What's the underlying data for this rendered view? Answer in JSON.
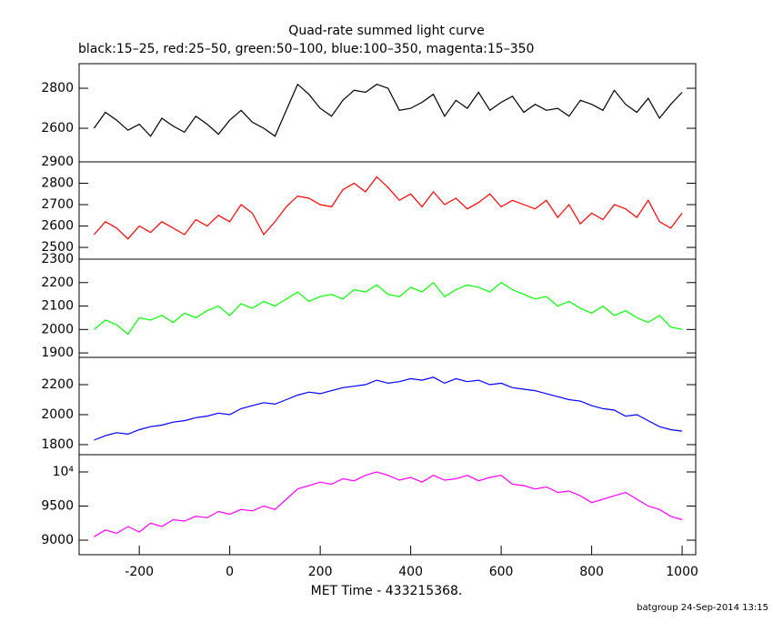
{
  "chart_data": [
    {
      "type": "line",
      "title": "Quad-rate summed light curve",
      "subtitle": "black:15–25, red:25–50, green:50–100, blue:100–350, magenta:15–350",
      "x": [
        -300,
        -275,
        -250,
        -225,
        -200,
        -175,
        -150,
        -125,
        -100,
        -75,
        -50,
        -25,
        0,
        25,
        50,
        75,
        100,
        125,
        150,
        175,
        200,
        225,
        250,
        275,
        300,
        325,
        350,
        375,
        400,
        425,
        450,
        475,
        500,
        525,
        550,
        575,
        600,
        625,
        650,
        675,
        700,
        725,
        750,
        775,
        800,
        825,
        850,
        875,
        900,
        925,
        950,
        975,
        1000
      ],
      "series": [
        {
          "color": "#000000",
          "values": [
            2600,
            2680,
            2640,
            2590,
            2620,
            2560,
            2650,
            2610,
            2580,
            2660,
            2620,
            2570,
            2640,
            2690,
            2630,
            2600,
            2560,
            2690,
            2820,
            2770,
            2700,
            2660,
            2740,
            2790,
            2780,
            2820,
            2800,
            2690,
            2700,
            2730,
            2770,
            2660,
            2740,
            2700,
            2780,
            2690,
            2730,
            2760,
            2680,
            2720,
            2690,
            2700,
            2660,
            2740,
            2720,
            2690,
            2790,
            2720,
            2680,
            2750,
            2650,
            2720,
            2780
          ]
        }
      ],
      "xlim": [
        -333,
        1030
      ],
      "ylim": [
        2432,
        2923
      ],
      "yticks": [
        2600,
        2800
      ]
    },
    {
      "type": "line",
      "x": [
        -300,
        -275,
        -250,
        -225,
        -200,
        -175,
        -150,
        -125,
        -100,
        -75,
        -50,
        -25,
        0,
        25,
        50,
        75,
        100,
        125,
        150,
        175,
        200,
        225,
        250,
        275,
        300,
        325,
        350,
        375,
        400,
        425,
        450,
        475,
        500,
        525,
        550,
        575,
        600,
        625,
        650,
        675,
        700,
        725,
        750,
        775,
        800,
        825,
        850,
        875,
        900,
        925,
        950,
        975,
        1000
      ],
      "series": [
        {
          "color": "#ff0000",
          "values": [
            2560,
            2620,
            2590,
            2540,
            2600,
            2570,
            2620,
            2590,
            2560,
            2630,
            2600,
            2650,
            2620,
            2700,
            2660,
            2560,
            2620,
            2690,
            2740,
            2730,
            2700,
            2690,
            2770,
            2800,
            2760,
            2830,
            2780,
            2720,
            2750,
            2690,
            2760,
            2700,
            2730,
            2680,
            2710,
            2750,
            2690,
            2720,
            2700,
            2680,
            2720,
            2640,
            2700,
            2610,
            2660,
            2630,
            2700,
            2680,
            2640,
            2720,
            2620,
            2590,
            2660
          ]
        }
      ],
      "xlim": [
        -333,
        1030
      ],
      "ylim": [
        2445,
        2900
      ],
      "yticks": [
        2500,
        2600,
        2700,
        2800,
        2900
      ]
    },
    {
      "type": "line",
      "x": [
        -300,
        -275,
        -250,
        -225,
        -200,
        -175,
        -150,
        -125,
        -100,
        -75,
        -50,
        -25,
        0,
        25,
        50,
        75,
        100,
        125,
        150,
        175,
        200,
        225,
        250,
        275,
        300,
        325,
        350,
        375,
        400,
        425,
        450,
        475,
        500,
        525,
        550,
        575,
        600,
        625,
        650,
        675,
        700,
        725,
        750,
        775,
        800,
        825,
        850,
        875,
        900,
        925,
        950,
        975,
        1000
      ],
      "series": [
        {
          "color": "#00ff00",
          "values": [
            2000,
            2040,
            2020,
            1980,
            2050,
            2040,
            2060,
            2030,
            2070,
            2050,
            2080,
            2100,
            2060,
            2110,
            2090,
            2120,
            2100,
            2130,
            2160,
            2120,
            2140,
            2150,
            2130,
            2170,
            2160,
            2190,
            2150,
            2140,
            2180,
            2160,
            2200,
            2140,
            2170,
            2190,
            2180,
            2160,
            2200,
            2170,
            2150,
            2130,
            2140,
            2100,
            2120,
            2090,
            2070,
            2100,
            2060,
            2080,
            2050,
            2030,
            2060,
            2010,
            2000
          ]
        }
      ],
      "xlim": [
        -333,
        1030
      ],
      "ylim": [
        1881,
        2300
      ],
      "yticks": [
        1900,
        2000,
        2100,
        2200,
        2300
      ]
    },
    {
      "type": "line",
      "x": [
        -300,
        -275,
        -250,
        -225,
        -200,
        -175,
        -150,
        -125,
        -100,
        -75,
        -50,
        -25,
        0,
        25,
        50,
        75,
        100,
        125,
        150,
        175,
        200,
        225,
        250,
        275,
        300,
        325,
        350,
        375,
        400,
        425,
        450,
        475,
        500,
        525,
        550,
        575,
        600,
        625,
        650,
        675,
        700,
        725,
        750,
        775,
        800,
        825,
        850,
        875,
        900,
        925,
        950,
        975,
        1000
      ],
      "series": [
        {
          "color": "#0000ff",
          "values": [
            1830,
            1860,
            1880,
            1870,
            1900,
            1920,
            1930,
            1950,
            1960,
            1980,
            1990,
            2010,
            2000,
            2040,
            2060,
            2080,
            2070,
            2100,
            2130,
            2150,
            2140,
            2160,
            2180,
            2190,
            2200,
            2230,
            2210,
            2220,
            2240,
            2230,
            2250,
            2210,
            2240,
            2220,
            2230,
            2200,
            2210,
            2180,
            2170,
            2160,
            2140,
            2120,
            2100,
            2090,
            2060,
            2040,
            2030,
            1990,
            2000,
            1960,
            1920,
            1900,
            1890
          ]
        }
      ],
      "xlim": [
        -333,
        1030
      ],
      "ylim": [
        1733,
        2382
      ],
      "yticks": [
        1800,
        2000,
        2200
      ]
    },
    {
      "type": "line",
      "xlabel": "MET Time - 433215368.",
      "x": [
        -300,
        -275,
        -250,
        -225,
        -200,
        -175,
        -150,
        -125,
        -100,
        -75,
        -50,
        -25,
        0,
        25,
        50,
        75,
        100,
        125,
        150,
        175,
        200,
        225,
        250,
        275,
        300,
        325,
        350,
        375,
        400,
        425,
        450,
        475,
        500,
        525,
        550,
        575,
        600,
        625,
        650,
        675,
        700,
        725,
        750,
        775,
        800,
        825,
        850,
        875,
        900,
        925,
        950,
        975,
        1000
      ],
      "series": [
        {
          "color": "#ff00ff",
          "values": [
            9050,
            9150,
            9100,
            9200,
            9120,
            9250,
            9200,
            9300,
            9280,
            9350,
            9330,
            9420,
            9380,
            9450,
            9430,
            9500,
            9450,
            9600,
            9750,
            9800,
            9850,
            9820,
            9900,
            9870,
            9950,
            10000,
            9950,
            9880,
            9920,
            9850,
            9950,
            9880,
            9900,
            9950,
            9870,
            9920,
            9950,
            9820,
            9800,
            9750,
            9780,
            9700,
            9720,
            9650,
            9550,
            9600,
            9650,
            9700,
            9600,
            9500,
            9450,
            9350,
            9300
          ]
        }
      ],
      "xlim": [
        -333,
        1030
      ],
      "ylim": [
        8787,
        10253
      ],
      "yticks": [
        9000,
        9500,
        {
          "value": 10000,
          "label": "10⁴"
        }
      ],
      "xticks": [
        -200,
        0,
        200,
        400,
        600,
        800,
        1000
      ]
    }
  ],
  "footer": "batgroup 24-Sep-2014 13:15"
}
